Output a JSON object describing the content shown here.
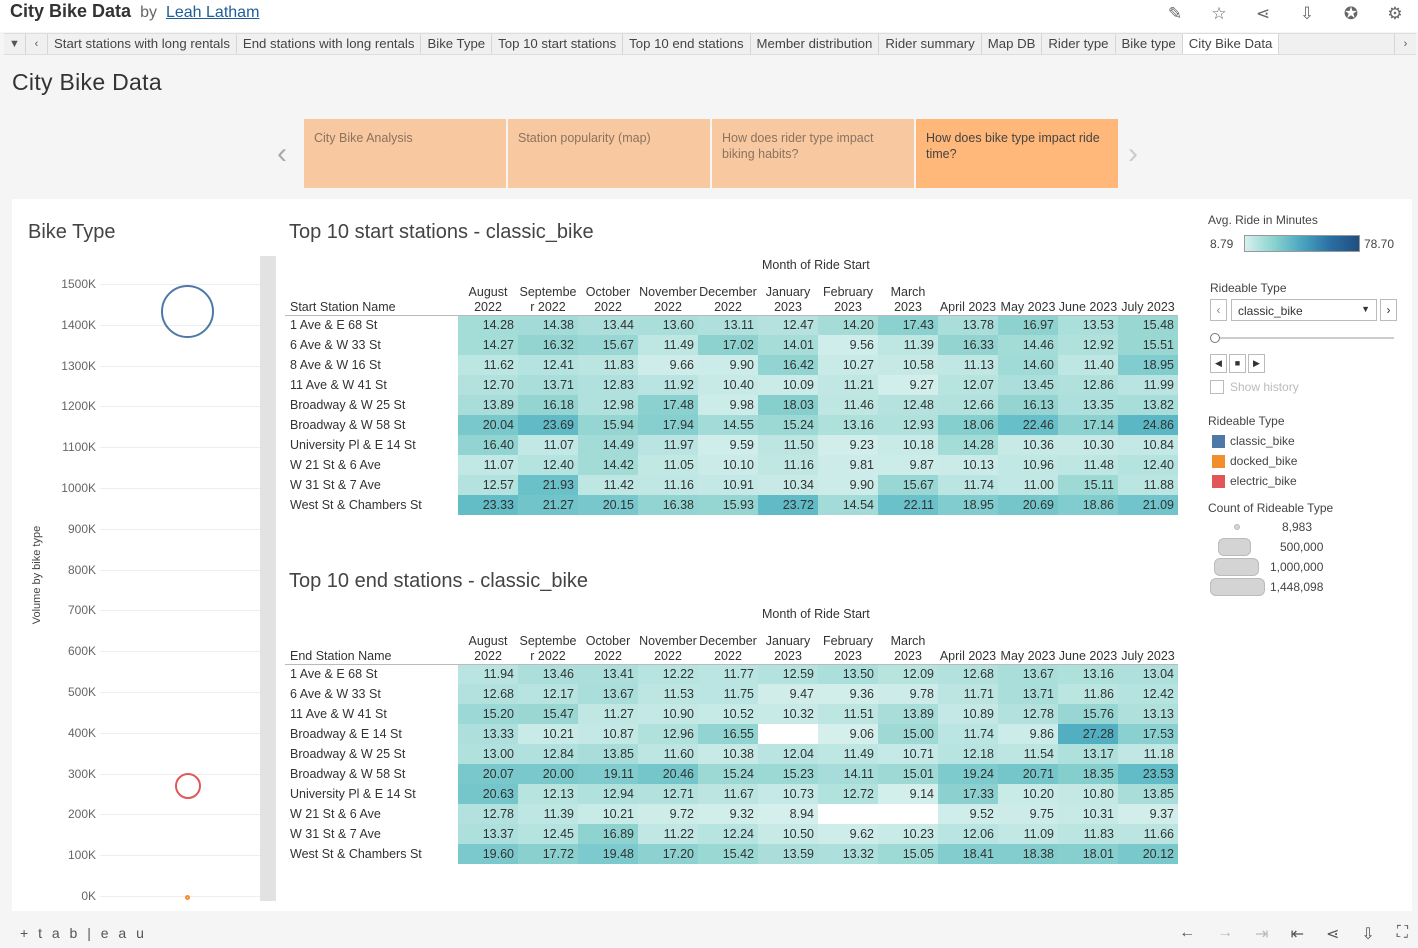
{
  "header": {
    "title": "City Bike Data",
    "by": "by",
    "author": "Leah Latham",
    "icons": [
      "edit-icon",
      "star-icon",
      "share-icon",
      "download-icon",
      "award-icon",
      "settings-icon"
    ]
  },
  "tabs": {
    "items": [
      "Start stations with long rentals",
      "End stations with long rentals",
      "Bike Type",
      "Top 10 start stations",
      "Top 10 end stations",
      "Member distribution",
      "Rider summary",
      "Map DB",
      "Rider type",
      "Bike type",
      "City Bike Data"
    ],
    "active": "City Bike Data"
  },
  "dashboard": {
    "title": "City Bike Data"
  },
  "story": [
    {
      "label": "City Bike Analysis",
      "active": false
    },
    {
      "label": "Station popularity (map)",
      "active": false
    },
    {
      "label": "How does rider type impact biking habits?",
      "active": false
    },
    {
      "label": "How does bike type impact ride time?",
      "active": true
    }
  ],
  "bike_type": {
    "title": "Bike Type",
    "y_axis_title": "Volume by bike type",
    "y_ticks": [
      "1500K",
      "1400K",
      "1300K",
      "1200K",
      "1100K",
      "1000K",
      "900K",
      "800K",
      "700K",
      "600K",
      "500K",
      "400K",
      "300K",
      "200K",
      "100K",
      "0K"
    ]
  },
  "start_table": {
    "title": "Top 10 start stations - classic_bike",
    "month_header": "Month of Ride Start",
    "row_header": "Start Station Name",
    "columns": [
      "August\n2022",
      "Septembe\nr 2022",
      "October\n2022",
      "November\n2022",
      "December\n2022",
      "January\n2023",
      "February\n2023",
      "March\n2023",
      "April 2023",
      "May 2023",
      "June 2023",
      "July 2023"
    ],
    "rows": [
      {
        "name": "1 Ave & E 68 St",
        "values": [
          14.28,
          14.38,
          13.44,
          13.6,
          13.11,
          12.47,
          14.2,
          17.43,
          13.78,
          16.97,
          13.53,
          15.48
        ]
      },
      {
        "name": "6 Ave & W 33 St",
        "values": [
          14.27,
          16.32,
          15.67,
          11.49,
          17.02,
          14.01,
          9.56,
          11.39,
          16.33,
          14.46,
          12.92,
          15.51
        ]
      },
      {
        "name": "8 Ave & W 16 St",
        "values": [
          11.62,
          12.41,
          11.83,
          9.66,
          9.9,
          16.42,
          10.27,
          10.58,
          11.13,
          14.6,
          11.4,
          18.95
        ]
      },
      {
        "name": "11 Ave & W 41 St",
        "values": [
          12.7,
          13.71,
          12.83,
          11.92,
          10.4,
          10.09,
          11.21,
          9.27,
          12.07,
          13.45,
          12.86,
          11.99
        ]
      },
      {
        "name": "Broadway & W 25 St",
        "values": [
          13.89,
          16.18,
          12.98,
          17.48,
          9.98,
          18.03,
          11.46,
          12.48,
          12.66,
          16.13,
          13.35,
          13.82
        ]
      },
      {
        "name": "Broadway & W 58 St",
        "values": [
          20.04,
          23.69,
          15.94,
          17.94,
          14.55,
          15.24,
          13.16,
          12.93,
          18.06,
          22.46,
          17.14,
          24.86
        ]
      },
      {
        "name": "University Pl & E 14 St",
        "values": [
          16.4,
          11.07,
          14.49,
          11.97,
          9.59,
          11.5,
          9.23,
          10.18,
          14.28,
          10.36,
          10.3,
          10.84
        ]
      },
      {
        "name": "W 21 St & 6 Ave",
        "values": [
          11.07,
          12.4,
          14.42,
          11.05,
          10.1,
          11.16,
          9.81,
          9.87,
          10.13,
          10.96,
          11.48,
          12.4
        ]
      },
      {
        "name": "W 31 St & 7 Ave",
        "values": [
          12.57,
          21.93,
          11.42,
          11.16,
          10.91,
          10.34,
          9.9,
          15.67,
          11.74,
          11.0,
          15.11,
          11.88
        ]
      },
      {
        "name": "West St & Chambers St",
        "values": [
          23.33,
          21.27,
          20.15,
          16.38,
          15.93,
          23.72,
          14.54,
          22.11,
          18.95,
          20.69,
          18.86,
          21.09
        ]
      }
    ]
  },
  "end_table": {
    "title": "Top 10 end stations - classic_bike",
    "month_header": "Month of Ride Start",
    "row_header": "End Station Name",
    "columns": [
      "August\n2022",
      "Septembe\nr 2022",
      "October\n2022",
      "November\n2022",
      "December\n2022",
      "January\n2023",
      "February\n2023",
      "March\n2023",
      "April 2023",
      "May 2023",
      "June 2023",
      "July 2023"
    ],
    "rows": [
      {
        "name": "1 Ave & E 68 St",
        "values": [
          11.94,
          13.46,
          13.41,
          12.22,
          11.77,
          12.59,
          13.5,
          12.09,
          12.68,
          13.67,
          13.16,
          13.04
        ]
      },
      {
        "name": "6 Ave & W 33 St",
        "values": [
          12.68,
          12.17,
          13.67,
          11.53,
          11.75,
          9.47,
          9.36,
          9.78,
          11.71,
          13.71,
          11.86,
          12.42
        ]
      },
      {
        "name": "11 Ave & W 41 St",
        "values": [
          15.2,
          15.47,
          11.27,
          10.9,
          10.52,
          10.32,
          11.51,
          13.89,
          10.89,
          12.78,
          15.76,
          13.13
        ]
      },
      {
        "name": "Broadway & E 14 St",
        "values": [
          13.33,
          10.21,
          10.87,
          12.96,
          16.55,
          null,
          9.06,
          15.0,
          11.74,
          9.86,
          27.28,
          17.53
        ]
      },
      {
        "name": "Broadway & W 25 St",
        "values": [
          13.0,
          12.84,
          13.85,
          11.6,
          10.38,
          12.04,
          11.49,
          10.71,
          12.18,
          11.54,
          13.17,
          11.18
        ]
      },
      {
        "name": "Broadway & W 58 St",
        "values": [
          20.07,
          20.0,
          19.11,
          20.46,
          15.24,
          15.23,
          14.11,
          15.01,
          19.24,
          20.71,
          18.35,
          23.53
        ]
      },
      {
        "name": "University Pl & E 14 St",
        "values": [
          20.63,
          12.13,
          12.94,
          12.71,
          11.67,
          10.73,
          12.72,
          9.14,
          17.33,
          10.2,
          10.8,
          13.85
        ]
      },
      {
        "name": "W 21 St & 6 Ave",
        "values": [
          12.78,
          11.39,
          10.21,
          9.72,
          9.32,
          8.94,
          null,
          null,
          9.52,
          9.75,
          10.31,
          9.37
        ]
      },
      {
        "name": "W 31 St & 7 Ave",
        "values": [
          13.37,
          12.45,
          16.89,
          11.22,
          12.24,
          10.5,
          9.62,
          10.23,
          12.06,
          11.09,
          11.83,
          11.66
        ]
      },
      {
        "name": "West St & Chambers St",
        "values": [
          19.6,
          17.72,
          19.48,
          17.2,
          15.42,
          13.59,
          13.32,
          15.05,
          18.41,
          18.38,
          18.01,
          20.12
        ]
      }
    ]
  },
  "legend": {
    "avg_title": "Avg. Ride in Minutes",
    "avg_min": "8.79",
    "avg_max": "78.70",
    "filter_title": "Rideable Type",
    "filter_value": "classic_bike",
    "show_history": "Show history",
    "color_title": "Rideable Type",
    "color_items": [
      {
        "label": "classic_bike",
        "color": "#4e79a7"
      },
      {
        "label": "docked_bike",
        "color": "#f28e2b"
      },
      {
        "label": "electric_bike",
        "color": "#e15759"
      }
    ],
    "size_title": "Count of Rideable Type",
    "size_items": [
      "8,983",
      "500,000",
      "1,000,000",
      "1,448,098"
    ]
  },
  "footer": {
    "logo": "+ t a b | e a u"
  }
}
